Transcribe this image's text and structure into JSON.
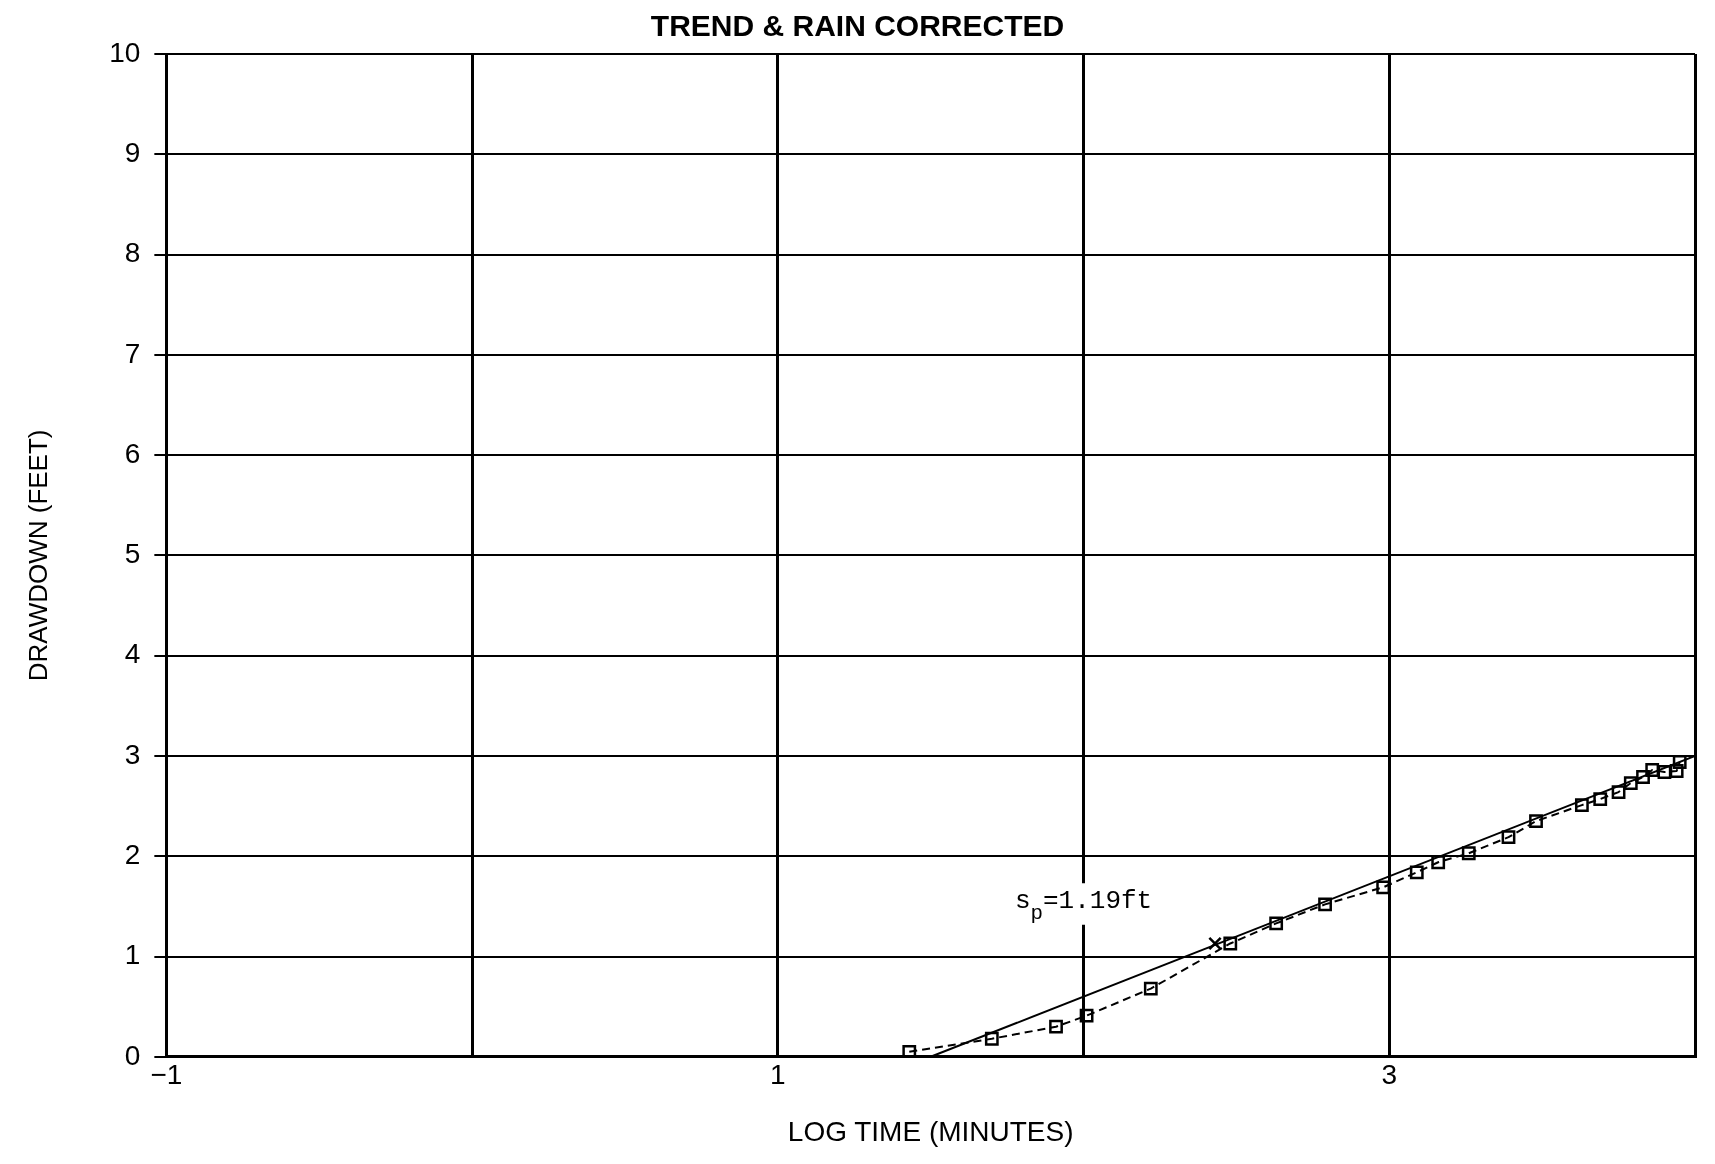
{
  "chart_data": {
    "type": "line",
    "title": "TREND & RAIN CORRECTED",
    "xlabel": "LOG TIME (MINUTES)",
    "ylabel": "DRAWDOWN (FEET)",
    "xlim": [
      -1,
      4
    ],
    "xticks": [
      -1,
      {
        "value": 0,
        "label": null
      },
      1,
      {
        "value": 2,
        "label": null
      },
      3,
      {
        "value": 4,
        "label": null
      }
    ],
    "ylim": [
      0,
      10
    ],
    "yticks": [
      0,
      1,
      2,
      3,
      4,
      5,
      6,
      7,
      8,
      9,
      10
    ],
    "grid": true,
    "legend": false,
    "series": [
      {
        "color": "#000000",
        "marker": "square",
        "line_style": "dashed",
        "x": [
          1.43,
          1.7,
          1.91,
          2.01,
          2.22,
          2.48,
          2.63,
          2.79,
          2.98,
          3.09,
          3.16,
          3.26,
          3.39,
          3.48,
          3.63,
          3.69,
          3.75,
          3.79,
          3.83,
          3.86,
          3.9,
          3.94,
          3.95
        ],
        "values": [
          0.05,
          0.18,
          0.3,
          0.41,
          0.68,
          1.13,
          1.33,
          1.52,
          1.69,
          1.84,
          1.94,
          2.03,
          2.19,
          2.35,
          2.51,
          2.57,
          2.64,
          2.73,
          2.79,
          2.86,
          2.84,
          2.85,
          2.94
        ]
      },
      {
        "color": "#000000",
        "marker": "none",
        "line_style": "solid",
        "x": [
          1.5,
          4.0
        ],
        "values": [
          0,
          3.0
        ]
      },
      {
        "type": "scatter",
        "color": "#000000",
        "marker": "cross",
        "x": [
          2.43
        ],
        "values": [
          1.13
        ]
      }
    ],
    "annotations": [
      "s$_{p}$=1.19ft"
    ]
  }
}
